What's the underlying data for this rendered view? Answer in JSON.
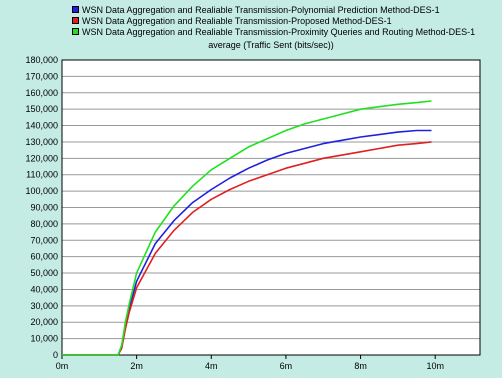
{
  "chart_data": {
    "type": "line",
    "subtitle": "average (Traffic Sent (bits/sec))",
    "x_tick_labels": [
      "0m",
      "2m",
      "4m",
      "6m",
      "8m",
      "10m"
    ],
    "x_ticks": [
      0,
      2,
      4,
      6,
      8,
      10
    ],
    "xlim": [
      0,
      11.2
    ],
    "ylim": [
      0,
      180000
    ],
    "y_ticks": [
      0,
      10000,
      20000,
      30000,
      40000,
      50000,
      60000,
      70000,
      80000,
      90000,
      100000,
      110000,
      120000,
      130000,
      140000,
      150000,
      160000,
      170000,
      180000
    ],
    "y_tick_labels": [
      "0",
      "10,000",
      "20,000",
      "30,000",
      "40,000",
      "50,000",
      "60,000",
      "70,000",
      "80,000",
      "90,000",
      "100,000",
      "110,000",
      "120,000",
      "130,000",
      "140,000",
      "150,000",
      "160,000",
      "170,000",
      "180,000"
    ],
    "grid": true,
    "legend_position": "top",
    "background_color": "#c4ece4",
    "plot_background_color": "#ffffff",
    "series": [
      {
        "name": "WSN Data Aggregation and Realiable Transmission-Polynomial Prediction Method-DES-1",
        "color": "#2020e0",
        "x": [
          0,
          1.0,
          1.5,
          1.6,
          1.7,
          1.8,
          2.0,
          2.5,
          3.0,
          3.5,
          4.0,
          4.5,
          5.0,
          5.5,
          6.0,
          6.5,
          7.0,
          7.5,
          8.0,
          8.5,
          9.0,
          9.5,
          9.9
        ],
        "values": [
          0,
          0,
          0,
          5000,
          18000,
          28000,
          45000,
          68000,
          82000,
          93000,
          101000,
          108000,
          114000,
          119000,
          123000,
          126000,
          129000,
          131000,
          133000,
          134500,
          136000,
          137000,
          137000
        ]
      },
      {
        "name": "WSN Data Aggregation and Realiable Transmission-Proposed Method-DES-1",
        "color": "#e02020",
        "x": [
          0,
          1.0,
          1.5,
          1.6,
          1.7,
          1.8,
          2.0,
          2.5,
          3.0,
          3.5,
          4.0,
          4.5,
          5.0,
          5.5,
          6.0,
          6.5,
          7.0,
          7.5,
          8.0,
          8.5,
          9.0,
          9.5,
          9.9
        ],
        "values": [
          0,
          0,
          0,
          4000,
          16000,
          26000,
          41000,
          62000,
          76000,
          87000,
          95000,
          101000,
          106000,
          110000,
          114000,
          117000,
          120000,
          122000,
          124000,
          126000,
          128000,
          129000,
          130000
        ]
      },
      {
        "name": "WSN Data Aggregation and Realiable Transmission-Proximity Queries and Routing Method-DES-1",
        "color": "#20e020",
        "x": [
          0,
          1.0,
          1.5,
          1.6,
          1.7,
          1.8,
          2.0,
          2.5,
          3.0,
          3.5,
          4.0,
          4.5,
          5.0,
          5.5,
          6.0,
          6.5,
          7.0,
          7.5,
          8.0,
          8.5,
          9.0,
          9.5,
          9.9
        ],
        "values": [
          0,
          0,
          0,
          6000,
          20000,
          31000,
          50000,
          75000,
          91000,
          103000,
          113000,
          120000,
          127000,
          132000,
          137000,
          141000,
          144000,
          147000,
          150000,
          151500,
          153000,
          154000,
          155000
        ]
      }
    ]
  }
}
